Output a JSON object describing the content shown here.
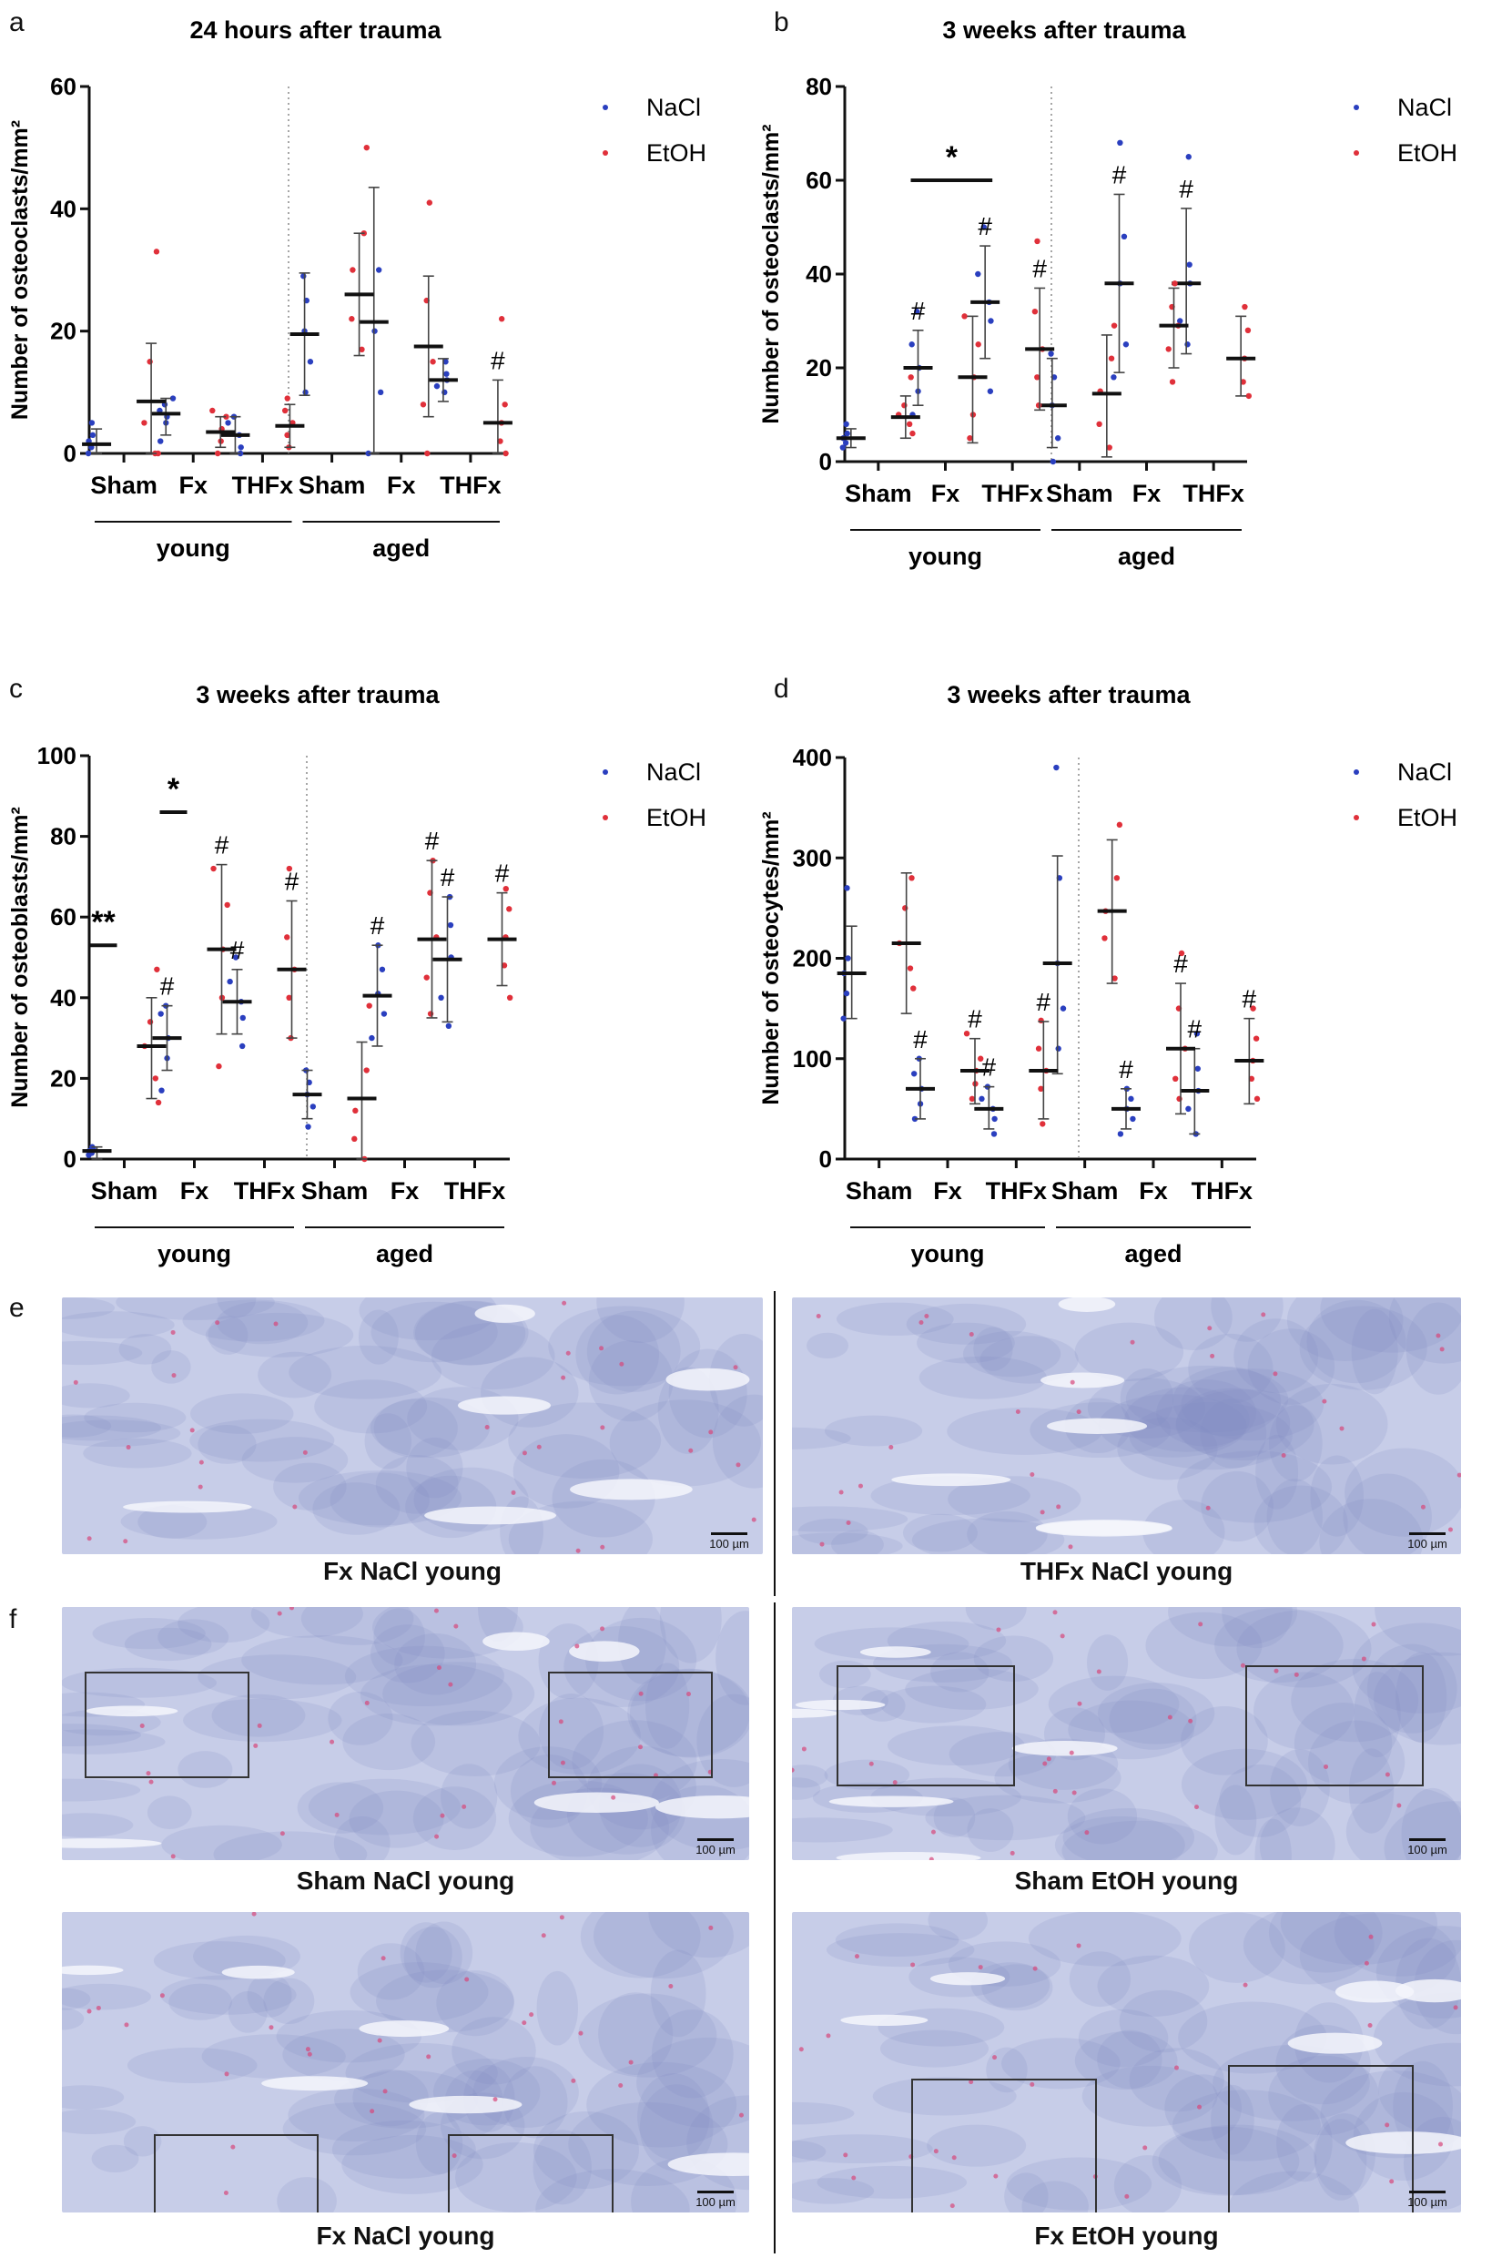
{
  "colors": {
    "nacl": "#2a3fbf",
    "etoh": "#e0303a",
    "mean": "#111111",
    "tissue": "#8f99cf",
    "stain": "#d7477a",
    "roi_mark": "#f2d600"
  },
  "chart_data": [
    {
      "id": "a",
      "panel_letter": "a",
      "type": "scatter",
      "title": "24 hours after trauma",
      "ylabel": "Number of osteoclasts/mm²",
      "ylim": [
        0,
        60
      ],
      "yticks": [
        0,
        20,
        40,
        60
      ],
      "categories": [
        "Sham",
        "Fx",
        "THFx",
        "Sham",
        "Fx",
        "THFx"
      ],
      "groups": [
        "young",
        "aged"
      ],
      "legend": [
        "NaCl",
        "EtOH"
      ],
      "significance": [],
      "series": [
        {
          "name": "NaCl",
          "means": [
            1.5,
            6.5,
            3,
            19.5,
            21.5,
            12
          ],
          "sd": [
            [
              0,
              4
            ],
            [
              3,
              9
            ],
            [
              0,
              6
            ],
            [
              9.5,
              29.5
            ],
            [
              0,
              43.5
            ],
            [
              8.5,
              15.5
            ]
          ],
          "points": [
            [
              0,
              1,
              2,
              3,
              5
            ],
            [
              2,
              5,
              6,
              7,
              8,
              9
            ],
            [
              0,
              1,
              3,
              5,
              6
            ],
            [
              10,
              15,
              20,
              25,
              29
            ],
            [
              0,
              10,
              20,
              30
            ],
            [
              10,
              11,
              12,
              13,
              15
            ]
          ],
          "hash": [
            false,
            false,
            false,
            false,
            false,
            false
          ]
        },
        {
          "name": "EtOH",
          "means": [
            8.5,
            3.5,
            4.5,
            26,
            17.5,
            5
          ],
          "sd": [
            [
              0,
              18
            ],
            [
              1,
              6
            ],
            [
              1,
              8
            ],
            [
              16,
              36
            ],
            [
              6,
              29
            ],
            [
              0,
              12
            ]
          ],
          "points": [
            [
              0,
              0,
              5,
              15,
              33
            ],
            [
              0,
              2,
              4,
              6,
              7
            ],
            [
              1,
              3,
              5,
              7,
              9
            ],
            [
              17,
              22,
              30,
              36,
              50
            ],
            [
              0,
              8,
              15,
              25,
              41
            ],
            [
              0,
              2,
              5,
              8,
              22
            ]
          ],
          "hash": [
            false,
            false,
            false,
            false,
            false,
            true
          ]
        }
      ]
    },
    {
      "id": "b",
      "panel_letter": "b",
      "type": "scatter",
      "title": "3 weeks after trauma",
      "ylabel": "Number of osteoclasts/mm²",
      "ylim": [
        0,
        80
      ],
      "yticks": [
        0,
        20,
        40,
        60,
        80
      ],
      "categories": [
        "Sham",
        "Fx",
        "THFx",
        "Sham",
        "Fx",
        "THFx"
      ],
      "groups": [
        "young",
        "aged"
      ],
      "legend": [
        "NaCl",
        "EtOH"
      ],
      "significance": [
        {
          "label": "*",
          "from": 1,
          "to": 2,
          "y": 60
        }
      ],
      "series": [
        {
          "name": "NaCl",
          "means": [
            5,
            20,
            34,
            12,
            38,
            38
          ],
          "sd": [
            [
              3,
              7
            ],
            [
              12,
              28
            ],
            [
              22,
              46
            ],
            [
              3,
              22
            ],
            [
              19,
              57
            ],
            [
              23,
              54
            ]
          ],
          "points": [
            [
              3,
              4,
              5,
              6,
              8
            ],
            [
              10,
              15,
              20,
              25,
              32
            ],
            [
              15,
              30,
              34,
              40,
              50
            ],
            [
              0,
              5,
              12,
              18,
              23
            ],
            [
              18,
              25,
              38,
              48,
              68
            ],
            [
              25,
              30,
              38,
              42,
              65
            ]
          ],
          "hash": [
            false,
            true,
            true,
            false,
            true,
            true
          ]
        },
        {
          "name": "EtOH",
          "means": [
            9.5,
            18,
            24,
            14.5,
            29,
            22
          ],
          "sd": [
            [
              5,
              14
            ],
            [
              4,
              31
            ],
            [
              11,
              37
            ],
            [
              1,
              27
            ],
            [
              20,
              37
            ],
            [
              14,
              31
            ]
          ],
          "points": [
            [
              6,
              8,
              10,
              12,
              18
            ],
            [
              5,
              10,
              18,
              25,
              31
            ],
            [
              12,
              18,
              24,
              32,
              47
            ],
            [
              3,
              8,
              15,
              22,
              29
            ],
            [
              17,
              24,
              29,
              33,
              38
            ],
            [
              14,
              17,
              22,
              28,
              33
            ]
          ],
          "hash": [
            false,
            false,
            true,
            false,
            false,
            false
          ]
        }
      ]
    },
    {
      "id": "c",
      "panel_letter": "c",
      "type": "scatter",
      "title": "3 weeks after trauma",
      "ylabel": "Number of osteoblasts/mm²",
      "ylim": [
        0,
        100
      ],
      "yticks": [
        0,
        20,
        40,
        60,
        80,
        100
      ],
      "categories": [
        "Sham",
        "Fx",
        "THFx",
        "Sham",
        "Fx",
        "THFx"
      ],
      "groups": [
        "young",
        "aged"
      ],
      "legend": [
        "NaCl",
        "EtOH"
      ],
      "significance": [
        {
          "label": "**",
          "from": 0,
          "to": 0,
          "y": 53
        },
        {
          "label": "*",
          "from": 1,
          "to": 1,
          "y": 86
        }
      ],
      "series": [
        {
          "name": "NaCl",
          "means": [
            2,
            30,
            39,
            16,
            40.5,
            49.5
          ],
          "sd": [
            [
              0,
              3
            ],
            [
              22,
              38
            ],
            [
              31,
              47
            ],
            [
              10,
              22
            ],
            [
              28,
              53
            ],
            [
              34,
              65
            ]
          ],
          "points": [
            [
              1,
              1.5,
              2,
              2.5,
              3
            ],
            [
              17,
              25,
              30,
              36,
              38
            ],
            [
              28,
              35,
              39,
              44,
              50
            ],
            [
              8,
              13,
              16,
              19,
              22
            ],
            [
              30,
              36,
              41,
              47,
              53
            ],
            [
              33,
              40,
              50,
              58,
              65
            ]
          ],
          "hash": [
            false,
            true,
            true,
            false,
            true,
            true
          ]
        },
        {
          "name": "EtOH",
          "means": [
            28,
            52,
            47,
            15,
            54.5,
            54.5
          ],
          "sd": [
            [
              15,
              40
            ],
            [
              31,
              73
            ],
            [
              30,
              64
            ],
            [
              0,
              29
            ],
            [
              35,
              74
            ],
            [
              43,
              66
            ]
          ],
          "points": [
            [
              14,
              20,
              28,
              34,
              47
            ],
            [
              23,
              40,
              52,
              63,
              72
            ],
            [
              30,
              40,
              47,
              55,
              72
            ],
            [
              0,
              5,
              12,
              22,
              38
            ],
            [
              36,
              45,
              55,
              66,
              74
            ],
            [
              40,
              48,
              55,
              62,
              67
            ]
          ],
          "hash": [
            false,
            true,
            true,
            false,
            true,
            true
          ]
        }
      ]
    },
    {
      "id": "d",
      "panel_letter": "d",
      "type": "scatter",
      "title": "3 weeks after trauma",
      "ylabel": "Number of osteocytes/mm²",
      "ylim": [
        0,
        400
      ],
      "yticks": [
        0,
        100,
        200,
        300,
        400
      ],
      "categories": [
        "Sham",
        "Fx",
        "THFx",
        "Sham",
        "Fx",
        "THFx"
      ],
      "groups": [
        "young",
        "aged"
      ],
      "legend": [
        "NaCl",
        "EtOH"
      ],
      "significance": [],
      "series": [
        {
          "name": "NaCl",
          "means": [
            185,
            70,
            50,
            195,
            50,
            68
          ],
          "sd": [
            [
              140,
              232
            ],
            [
              40,
              100
            ],
            [
              30,
              72
            ],
            [
              85,
              302
            ],
            [
              30,
              70
            ],
            [
              25,
              110
            ]
          ],
          "points": [
            [
              140,
              165,
              185,
              200,
              270
            ],
            [
              40,
              55,
              70,
              85,
              100
            ],
            [
              25,
              40,
              50,
              60,
              72
            ],
            [
              110,
              150,
              195,
              280,
              390
            ],
            [
              25,
              40,
              50,
              60,
              70
            ],
            [
              25,
              50,
              68,
              90,
              125
            ]
          ],
          "hash": [
            false,
            true,
            true,
            false,
            true,
            true
          ]
        },
        {
          "name": "EtOH",
          "means": [
            215,
            88,
            88,
            247,
            110,
            98
          ],
          "sd": [
            [
              145,
              285
            ],
            [
              55,
              120
            ],
            [
              40,
              137
            ],
            [
              175,
              318
            ],
            [
              45,
              175
            ],
            [
              55,
              140
            ]
          ],
          "points": [
            [
              170,
              190,
              215,
              250,
              280
            ],
            [
              60,
              75,
              88,
              100,
              125
            ],
            [
              35,
              70,
              88,
              110,
              138
            ],
            [
              180,
              220,
              247,
              280,
              333
            ],
            [
              60,
              80,
              110,
              150,
              205
            ],
            [
              60,
              80,
              98,
              120,
              150
            ]
          ],
          "hash": [
            false,
            true,
            true,
            false,
            true,
            true
          ]
        }
      ]
    }
  ],
  "micrographs": [
    {
      "id": "e1",
      "panel_letter": "e",
      "caption": "Fx NaCl young",
      "scale_label": "100 µm",
      "rois": 0
    },
    {
      "id": "e2",
      "caption": "THFx NaCl young",
      "scale_label": "100 µm",
      "rois": 0
    },
    {
      "id": "f1",
      "panel_letter": "f",
      "caption": "Sham NaCl young",
      "scale_label": "100 µm",
      "rois": 2
    },
    {
      "id": "f2",
      "caption": "Sham EtOH young",
      "scale_label": "100 µm",
      "rois": 2
    },
    {
      "id": "f3",
      "caption": "Fx NaCl young",
      "scale_label": "100 µm",
      "rois": 2
    },
    {
      "id": "f4",
      "caption": "Fx EtOH young",
      "scale_label": "100 µm",
      "rois": 2
    }
  ]
}
